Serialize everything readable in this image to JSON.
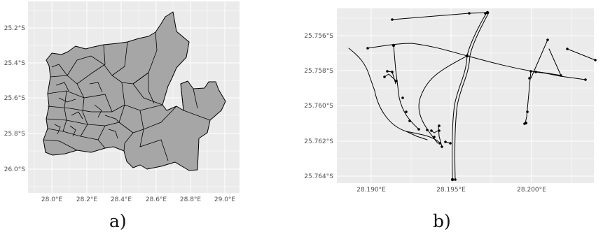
{
  "figure": {
    "panels": [
      {
        "caption": "a)",
        "type": "map",
        "y_ticks": [
          "25.2°S",
          "25.4°S",
          "25.6°S",
          "25.8°S",
          "26.0°S"
        ],
        "x_ticks": [
          "28.0°E",
          "28.2°E",
          "28.4°E",
          "28.6°E",
          "28.8°E",
          "29.0°E"
        ],
        "fill_color": "#a6a6a6",
        "stroke_color": "#000000",
        "background_color": "#ebebeb"
      },
      {
        "caption": "b)",
        "type": "network",
        "y_ticks": [
          "25.756°S",
          "25.758°S",
          "25.760°S",
          "25.762°S",
          "25.764°S"
        ],
        "x_ticks": [
          "28.190°E",
          "28.195°E",
          "28.200°E"
        ],
        "line_color": "#000000",
        "background_color": "#ebebeb"
      }
    ]
  }
}
